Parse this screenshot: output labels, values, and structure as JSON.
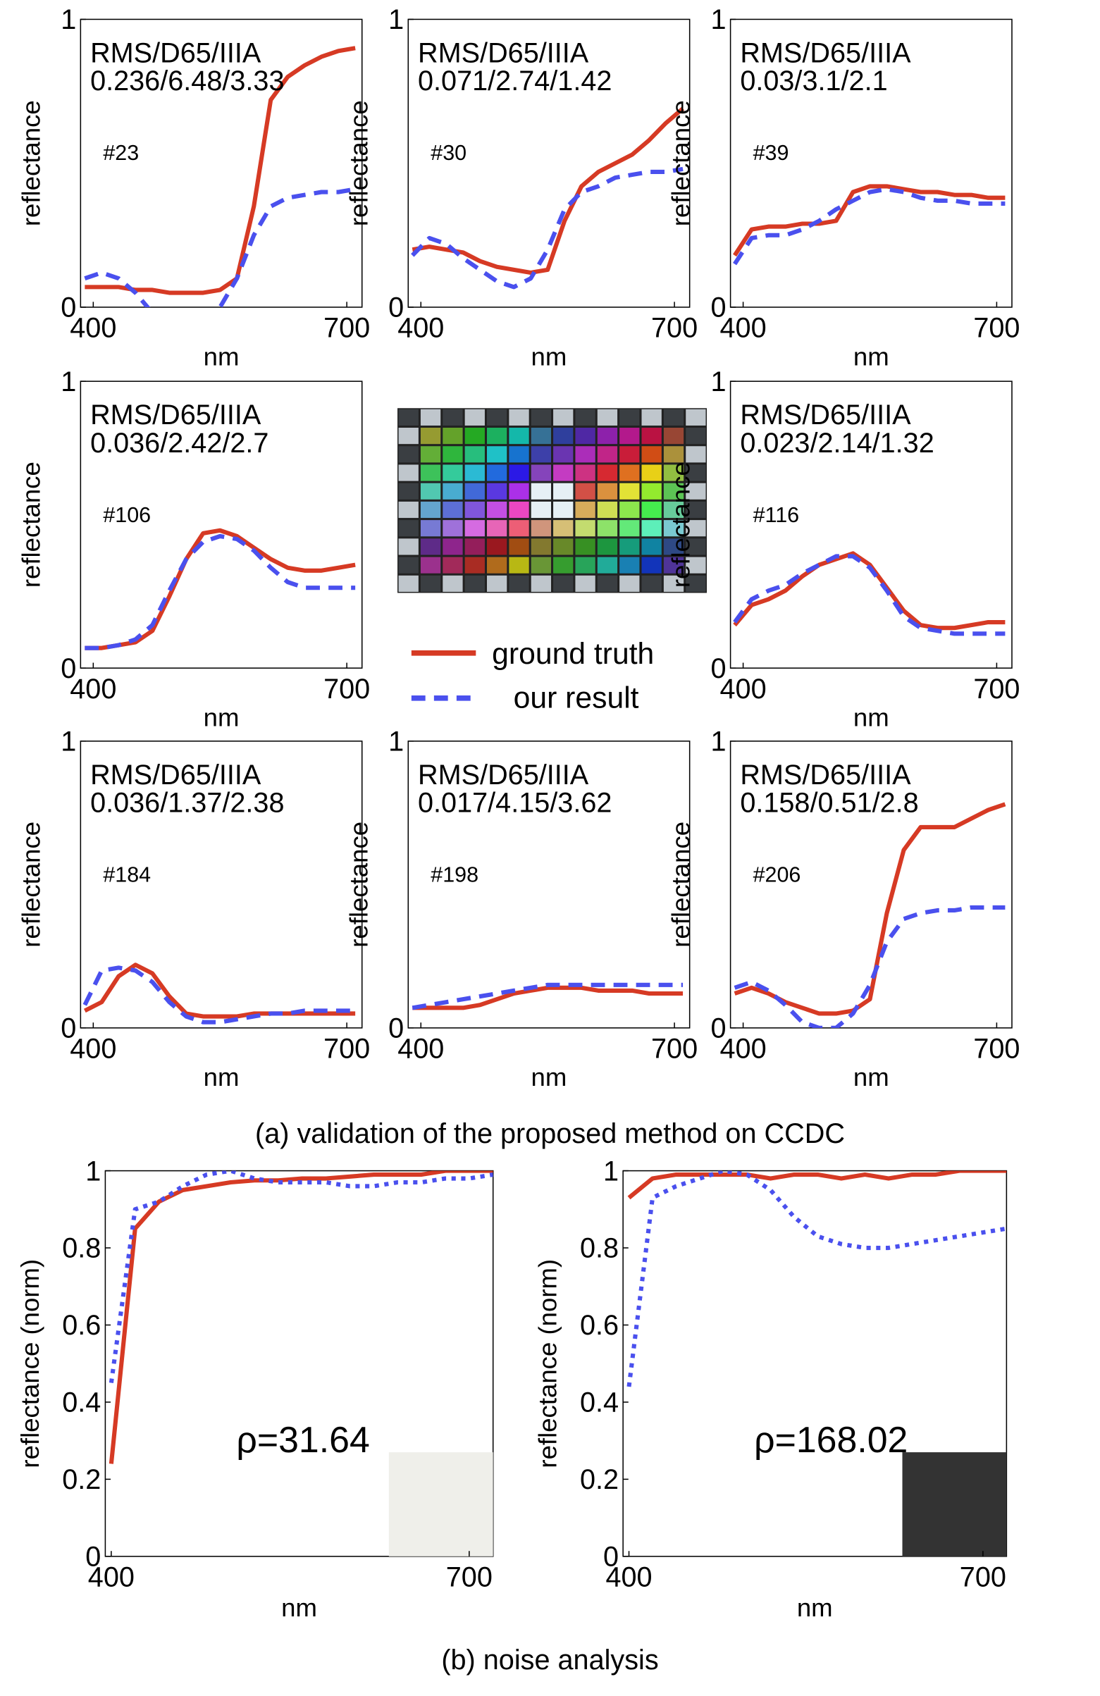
{
  "chart_data": [
    {
      "type": "line",
      "ylabel": "reflectance",
      "xlabel": "nm",
      "x": [
        390,
        410,
        430,
        450,
        470,
        490,
        510,
        530,
        550,
        570,
        590,
        610,
        630,
        650,
        670,
        690,
        710
      ],
      "xlim": [
        385,
        718
      ],
      "xticks": [
        400,
        700
      ],
      "ylim": [
        0,
        1
      ],
      "yticks": [
        0,
        1
      ],
      "annotations": [
        "RMS/D65/IIIA",
        "0.236/6.48/3.33",
        "#23"
      ],
      "series": [
        {
          "name": "ground truth",
          "color": "#d63a24",
          "style": "solid",
          "values": [
            0.07,
            0.07,
            0.07,
            0.06,
            0.06,
            0.05,
            0.05,
            0.05,
            0.06,
            0.1,
            0.35,
            0.72,
            0.8,
            0.84,
            0.87,
            0.89,
            0.9
          ]
        },
        {
          "name": "our result",
          "color": "#4a50ee",
          "style": "dashed",
          "values": [
            0.1,
            0.12,
            0.1,
            0.05,
            -0.02,
            -0.05,
            -0.05,
            -0.03,
            0.0,
            0.1,
            0.25,
            0.35,
            0.38,
            0.39,
            0.4,
            0.4,
            0.41
          ]
        }
      ]
    },
    {
      "type": "line",
      "ylabel": "reflectance",
      "xlabel": "nm",
      "x": [
        390,
        410,
        430,
        450,
        470,
        490,
        510,
        530,
        550,
        570,
        590,
        610,
        630,
        650,
        670,
        690,
        710
      ],
      "xlim": [
        385,
        718
      ],
      "xticks": [
        400,
        700
      ],
      "ylim": [
        0,
        1
      ],
      "yticks": [
        0,
        1
      ],
      "annotations": [
        "RMS/D65/IIIA",
        "0.071/2.74/1.42",
        "#30"
      ],
      "series": [
        {
          "name": "ground truth",
          "color": "#d63a24",
          "style": "solid",
          "values": [
            0.2,
            0.21,
            0.2,
            0.19,
            0.16,
            0.14,
            0.13,
            0.12,
            0.13,
            0.3,
            0.42,
            0.47,
            0.5,
            0.53,
            0.58,
            0.64,
            0.69
          ]
        },
        {
          "name": "our result",
          "color": "#4a50ee",
          "style": "dashed",
          "values": [
            0.18,
            0.24,
            0.22,
            0.17,
            0.13,
            0.09,
            0.07,
            0.1,
            0.2,
            0.34,
            0.4,
            0.42,
            0.45,
            0.46,
            0.47,
            0.47,
            0.48
          ]
        }
      ]
    },
    {
      "type": "line",
      "ylabel": "reflectance",
      "xlabel": "nm",
      "x": [
        390,
        410,
        430,
        450,
        470,
        490,
        510,
        530,
        550,
        570,
        590,
        610,
        630,
        650,
        670,
        690,
        710
      ],
      "xlim": [
        385,
        718
      ],
      "xticks": [
        400,
        700
      ],
      "ylim": [
        0,
        1
      ],
      "yticks": [
        0,
        1
      ],
      "annotations": [
        "RMS/D65/IIIA",
        "0.03/3.1/2.1",
        "#39"
      ],
      "series": [
        {
          "name": "ground truth",
          "color": "#d63a24",
          "style": "solid",
          "values": [
            0.18,
            0.27,
            0.28,
            0.28,
            0.29,
            0.29,
            0.3,
            0.4,
            0.42,
            0.42,
            0.41,
            0.4,
            0.4,
            0.39,
            0.39,
            0.38,
            0.38
          ]
        },
        {
          "name": "our result",
          "color": "#4a50ee",
          "style": "dashed",
          "values": [
            0.15,
            0.24,
            0.25,
            0.25,
            0.27,
            0.3,
            0.34,
            0.37,
            0.4,
            0.41,
            0.4,
            0.38,
            0.37,
            0.37,
            0.36,
            0.36,
            0.36
          ]
        }
      ]
    },
    {
      "type": "line",
      "ylabel": "reflectance",
      "xlabel": "nm",
      "x": [
        390,
        410,
        430,
        450,
        470,
        490,
        510,
        530,
        550,
        570,
        590,
        610,
        630,
        650,
        670,
        690,
        710
      ],
      "xlim": [
        385,
        718
      ],
      "xticks": [
        400,
        700
      ],
      "ylim": [
        0,
        1
      ],
      "yticks": [
        0,
        1
      ],
      "annotations": [
        "RMS/D65/IIIA",
        "0.036/2.42/2.7",
        "#106"
      ],
      "series": [
        {
          "name": "ground truth",
          "color": "#d63a24",
          "style": "solid",
          "values": [
            0.07,
            0.07,
            0.08,
            0.09,
            0.13,
            0.25,
            0.38,
            0.47,
            0.48,
            0.46,
            0.42,
            0.38,
            0.35,
            0.34,
            0.34,
            0.35,
            0.36
          ]
        },
        {
          "name": "our result",
          "color": "#4a50ee",
          "style": "dashed",
          "values": [
            0.07,
            0.07,
            0.08,
            0.1,
            0.15,
            0.27,
            0.38,
            0.44,
            0.46,
            0.45,
            0.41,
            0.35,
            0.3,
            0.28,
            0.28,
            0.28,
            0.28
          ]
        }
      ]
    },
    {
      "type": "line",
      "ylabel": "reflectance",
      "xlabel": "nm",
      "x": [
        390,
        410,
        430,
        450,
        470,
        490,
        510,
        530,
        550,
        570,
        590,
        610,
        630,
        650,
        670,
        690,
        710
      ],
      "xlim": [
        385,
        718
      ],
      "xticks": [
        400,
        700
      ],
      "ylim": [
        0,
        1
      ],
      "yticks": [
        0,
        1
      ],
      "annotations": [
        "RMS/D65/IIIA",
        "0.023/2.14/1.32",
        "#116"
      ],
      "series": [
        {
          "name": "ground truth",
          "color": "#d63a24",
          "style": "solid",
          "values": [
            0.15,
            0.22,
            0.24,
            0.27,
            0.32,
            0.36,
            0.38,
            0.4,
            0.36,
            0.28,
            0.2,
            0.15,
            0.14,
            0.14,
            0.15,
            0.16,
            0.16
          ]
        },
        {
          "name": "our result",
          "color": "#4a50ee",
          "style": "dashed",
          "values": [
            0.16,
            0.24,
            0.27,
            0.29,
            0.33,
            0.36,
            0.39,
            0.39,
            0.35,
            0.27,
            0.18,
            0.14,
            0.13,
            0.12,
            0.12,
            0.12,
            0.12
          ]
        }
      ]
    },
    {
      "type": "line",
      "ylabel": "reflectance",
      "xlabel": "nm",
      "x": [
        390,
        410,
        430,
        450,
        470,
        490,
        510,
        530,
        550,
        570,
        590,
        610,
        630,
        650,
        670,
        690,
        710
      ],
      "xlim": [
        385,
        718
      ],
      "xticks": [
        400,
        700
      ],
      "ylim": [
        0,
        1
      ],
      "yticks": [
        0,
        1
      ],
      "annotations": [
        "RMS/D65/IIIA",
        "0.036/1.37/2.38",
        "#184"
      ],
      "series": [
        {
          "name": "ground truth",
          "color": "#d63a24",
          "style": "solid",
          "values": [
            0.06,
            0.09,
            0.18,
            0.22,
            0.19,
            0.11,
            0.05,
            0.04,
            0.04,
            0.04,
            0.05,
            0.05,
            0.05,
            0.05,
            0.05,
            0.05,
            0.05
          ]
        },
        {
          "name": "our result",
          "color": "#4a50ee",
          "style": "dashed",
          "values": [
            0.08,
            0.2,
            0.21,
            0.2,
            0.16,
            0.09,
            0.04,
            0.02,
            0.02,
            0.03,
            0.04,
            0.05,
            0.05,
            0.06,
            0.06,
            0.06,
            0.06
          ]
        }
      ]
    },
    {
      "type": "line",
      "ylabel": "reflectance",
      "xlabel": "nm",
      "x": [
        390,
        410,
        430,
        450,
        470,
        490,
        510,
        530,
        550,
        570,
        590,
        610,
        630,
        650,
        670,
        690,
        710
      ],
      "xlim": [
        385,
        718
      ],
      "xticks": [
        400,
        700
      ],
      "ylim": [
        0,
        1
      ],
      "yticks": [
        0,
        1
      ],
      "annotations": [
        "RMS/D65/IIIA",
        "0.017/4.15/3.62",
        "#198"
      ],
      "series": [
        {
          "name": "ground truth",
          "color": "#d63a24",
          "style": "solid",
          "values": [
            0.07,
            0.07,
            0.07,
            0.07,
            0.08,
            0.1,
            0.12,
            0.13,
            0.14,
            0.14,
            0.14,
            0.13,
            0.13,
            0.13,
            0.12,
            0.12,
            0.12
          ]
        },
        {
          "name": "our result",
          "color": "#4a50ee",
          "style": "dashed",
          "values": [
            0.07,
            0.08,
            0.09,
            0.1,
            0.11,
            0.12,
            0.13,
            0.14,
            0.15,
            0.15,
            0.15,
            0.15,
            0.15,
            0.15,
            0.15,
            0.15,
            0.15
          ]
        }
      ]
    },
    {
      "type": "line",
      "ylabel": "reflectance",
      "xlabel": "nm",
      "x": [
        390,
        410,
        430,
        450,
        470,
        490,
        510,
        530,
        550,
        570,
        590,
        610,
        630,
        650,
        670,
        690,
        710
      ],
      "xlim": [
        385,
        718
      ],
      "xticks": [
        400,
        700
      ],
      "ylim": [
        0,
        1
      ],
      "yticks": [
        0,
        1
      ],
      "annotations": [
        "RMS/D65/IIIA",
        "0.158/0.51/2.8",
        "#206"
      ],
      "series": [
        {
          "name": "ground truth",
          "color": "#d63a24",
          "style": "solid",
          "values": [
            0.12,
            0.14,
            0.12,
            0.09,
            0.07,
            0.05,
            0.05,
            0.06,
            0.1,
            0.4,
            0.62,
            0.7,
            0.7,
            0.7,
            0.73,
            0.76,
            0.78
          ]
        },
        {
          "name": "our result",
          "color": "#4a50ee",
          "style": "dashed",
          "values": [
            0.14,
            0.16,
            0.13,
            0.08,
            0.02,
            0.0,
            0.0,
            0.05,
            0.15,
            0.3,
            0.38,
            0.4,
            0.41,
            0.41,
            0.42,
            0.42,
            0.42
          ]
        }
      ]
    },
    {
      "type": "line",
      "ylabel": "reflectance (norm)",
      "xlabel": "nm",
      "x": [
        400,
        420,
        440,
        460,
        480,
        500,
        520,
        540,
        560,
        580,
        600,
        620,
        640,
        660,
        680,
        700,
        720
      ],
      "xlim": [
        395,
        720
      ],
      "xticks": [
        400,
        700
      ],
      "ylim": [
        0,
        1
      ],
      "yticks": [
        0,
        0.2,
        0.4,
        0.6,
        0.8,
        1
      ],
      "annotations": [
        "ρ=31.64"
      ],
      "inset_color": "#efefea",
      "series": [
        {
          "name": "ground truth",
          "color": "#d63a24",
          "style": "solid",
          "values": [
            0.24,
            0.85,
            0.92,
            0.95,
            0.96,
            0.97,
            0.975,
            0.975,
            0.98,
            0.98,
            0.985,
            0.99,
            0.99,
            0.99,
            1,
            1,
            1
          ]
        },
        {
          "name": "our result",
          "color": "#4a50ee",
          "style": "dotted",
          "values": [
            0.45,
            0.9,
            0.92,
            0.96,
            0.99,
            1.0,
            0.98,
            0.97,
            0.97,
            0.97,
            0.96,
            0.96,
            0.97,
            0.97,
            0.98,
            0.98,
            0.99
          ]
        }
      ]
    },
    {
      "type": "line",
      "ylabel": "reflectance (norm)",
      "xlabel": "nm",
      "x": [
        400,
        420,
        440,
        460,
        480,
        500,
        520,
        540,
        560,
        580,
        600,
        620,
        640,
        660,
        680,
        700,
        720
      ],
      "xlim": [
        395,
        720
      ],
      "xticks": [
        400,
        700
      ],
      "ylim": [
        0,
        1
      ],
      "yticks": [
        0,
        0.2,
        0.4,
        0.6,
        0.8,
        1
      ],
      "annotations": [
        "ρ=168.02"
      ],
      "inset_color": "#333333",
      "series": [
        {
          "name": "ground truth",
          "color": "#d63a24",
          "style": "solid",
          "values": [
            0.93,
            0.98,
            0.99,
            0.99,
            0.99,
            0.99,
            0.98,
            0.99,
            0.99,
            0.98,
            0.99,
            0.98,
            0.99,
            0.99,
            1,
            1,
            1
          ]
        },
        {
          "name": "our result",
          "color": "#4a50ee",
          "style": "dotted",
          "values": [
            0.44,
            0.93,
            0.96,
            0.98,
            1.0,
            0.99,
            0.95,
            0.88,
            0.83,
            0.81,
            0.8,
            0.8,
            0.81,
            0.82,
            0.83,
            0.84,
            0.85
          ]
        }
      ]
    }
  ],
  "captions": [
    "(a) validation of the proposed method on CCDC",
    "(b) noise analysis"
  ]
}
